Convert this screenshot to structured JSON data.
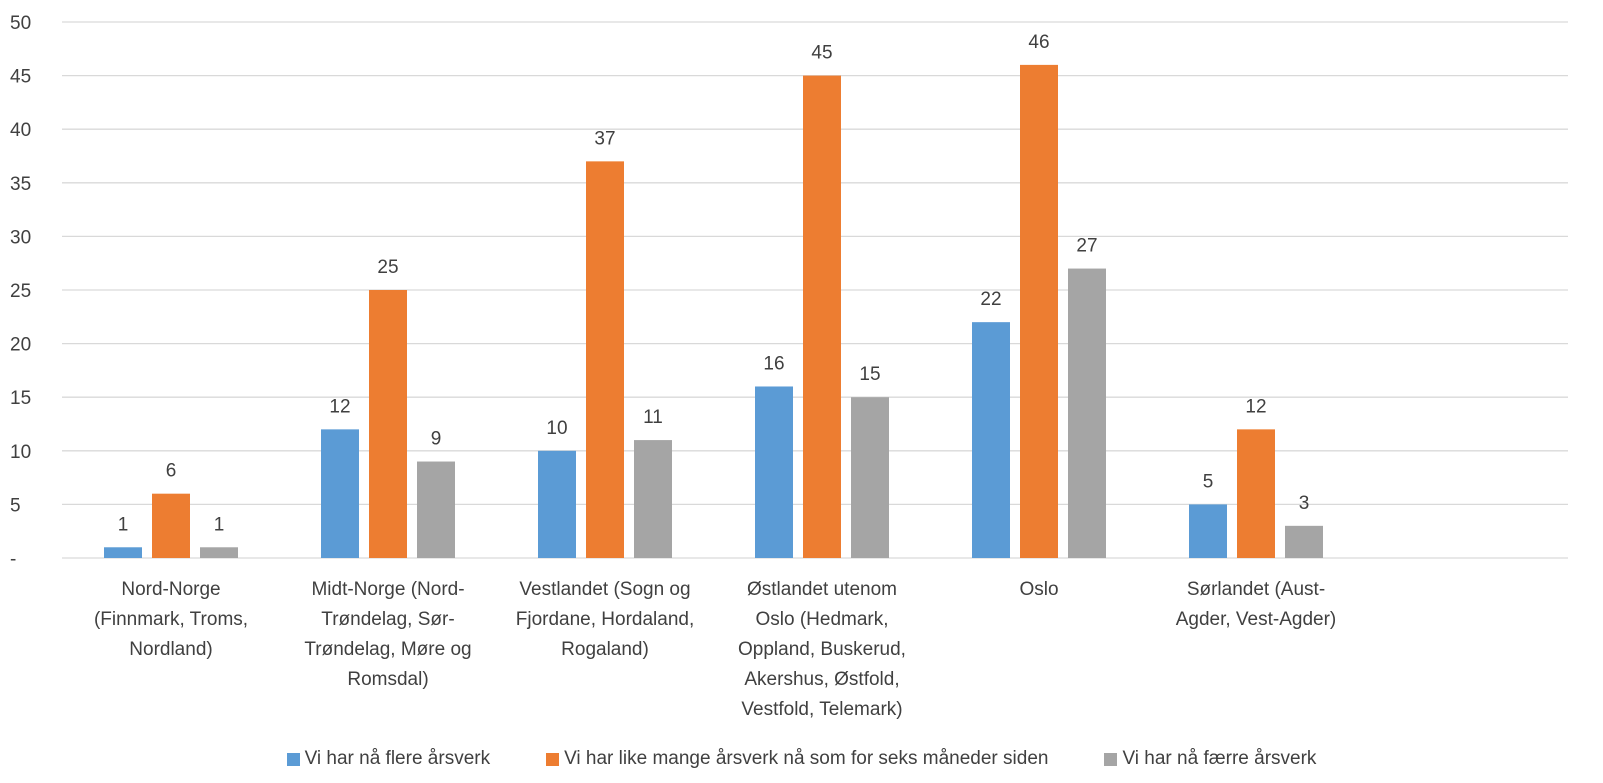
{
  "chart_data": {
    "type": "bar",
    "categories": [
      [
        "Nord-Norge",
        "(Finnmark, Troms,",
        "Nordland)"
      ],
      [
        "Midt-Norge (Nord-",
        "Trøndelag, Sør-",
        "Trøndelag, Møre og",
        "Romsdal)"
      ],
      [
        "Vestlandet (Sogn og",
        "Fjordane, Hordaland,",
        "Rogaland)"
      ],
      [
        "Østlandet utenom",
        "Oslo (Hedmark,",
        "Oppland, Buskerud,",
        "Akershus, Østfold,",
        "Vestfold, Telemark)"
      ],
      [
        "Oslo"
      ],
      [
        "Sørlandet (Aust-",
        "Agder, Vest-Agder)"
      ]
    ],
    "series": [
      {
        "name": "Vi har nå flere årsverk",
        "color": "#5B9BD5",
        "values": [
          1,
          12,
          10,
          16,
          22,
          5
        ]
      },
      {
        "name": "Vi har like mange årsverk nå som for seks måneder siden",
        "color": "#ED7D31",
        "values": [
          6,
          25,
          37,
          45,
          46,
          12
        ]
      },
      {
        "name": "Vi har nå færre årsverk",
        "color": "#A5A5A5",
        "values": [
          1,
          9,
          11,
          15,
          27,
          3
        ]
      }
    ],
    "y_ticks": [
      "-",
      "5",
      "10",
      "15",
      "20",
      "25",
      "30",
      "35",
      "40",
      "45",
      "50"
    ],
    "ylim": [
      0,
      50
    ],
    "grid": true,
    "legend_position": "bottom",
    "title": "",
    "xlabel": "",
    "ylabel": ""
  }
}
